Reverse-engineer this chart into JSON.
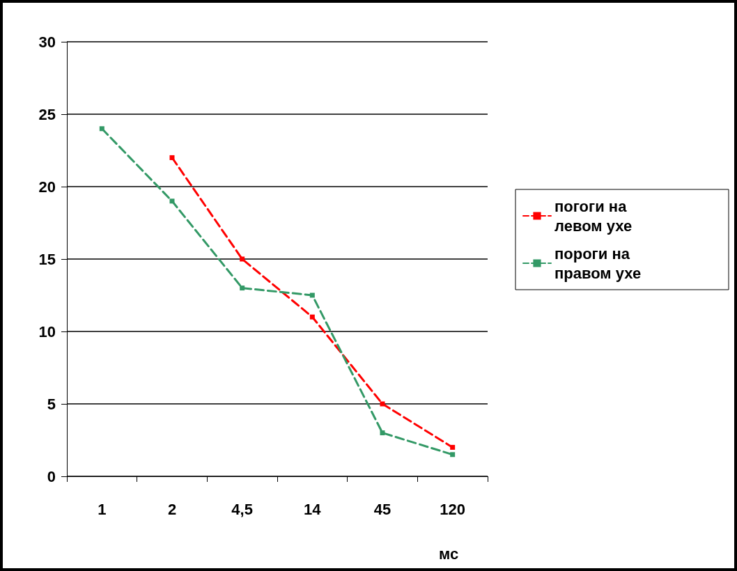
{
  "chart_data": {
    "type": "line",
    "xlabel": "мс",
    "categories": [
      "1",
      "2",
      "4,5",
      "14",
      "45",
      "120"
    ],
    "series": [
      {
        "name": "погоги на левом ухе",
        "color": "#ff0000",
        "values": [
          null,
          22,
          15,
          11,
          5,
          2
        ]
      },
      {
        "name": "пороги на правом ухе",
        "color": "#339966",
        "values": [
          24,
          19,
          13,
          12.5,
          3,
          1.5
        ]
      }
    ],
    "ylim": [
      0,
      30
    ],
    "yticks": [
      0,
      5,
      10,
      15,
      20,
      25,
      30
    ],
    "grid": "y",
    "legend": "right",
    "marker": "square",
    "line_style": "dashed"
  }
}
